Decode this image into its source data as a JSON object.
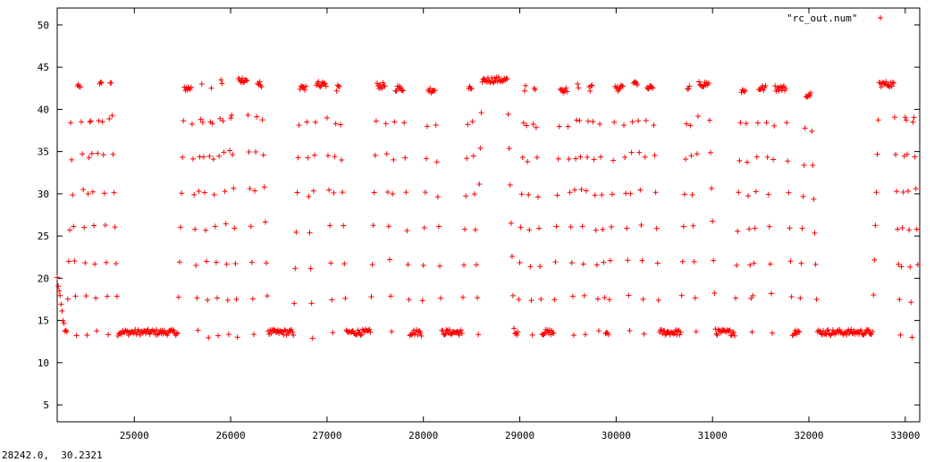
{
  "chart_data": {
    "type": "scatter",
    "title": "",
    "xlabel": "",
    "ylabel": "",
    "xlim": [
      24200,
      33150
    ],
    "ylim": [
      3,
      52
    ],
    "xticks": [
      25000,
      26000,
      27000,
      28000,
      29000,
      30000,
      31000,
      32000,
      33000
    ],
    "yticks": [
      5,
      10,
      15,
      20,
      25,
      30,
      35,
      40,
      45,
      50
    ],
    "grid": false,
    "legend_position": "top-right",
    "marker": "+",
    "series": [
      {
        "name": "\"rc_out.num\"",
        "color": "#ff0000",
        "sample_spacing": 10,
        "pulses": [
          {
            "start": 24200,
            "rise": 24300,
            "fall": 24330,
            "high": 42.5,
            "low": 13.5,
            "x0": 24200,
            "y0": 20.0
          },
          {
            "rise": 24320,
            "fall": 24440,
            "high": 42.8,
            "low": 13.5
          },
          {
            "rise": 24480,
            "fall": 24540,
            "high": 42.8,
            "low": 13.5
          },
          {
            "rise": 24570,
            "fall": 24660,
            "high": 43.0,
            "low": 13.5
          },
          {
            "rise": 24680,
            "fall": 24760,
            "high": 43.2,
            "low": 13.5
          },
          {
            "rise": 25450,
            "fall": 25590,
            "high": 42.5,
            "low": 13.5
          },
          {
            "rise": 25630,
            "fall": 25700,
            "high": 42.8,
            "low": 13.3
          },
          {
            "rise": 25730,
            "fall": 25800,
            "high": 42.8,
            "low": 13.3
          },
          {
            "rise": 25830,
            "fall": 25910,
            "high": 43.2,
            "low": 13.3
          },
          {
            "rise": 25940,
            "fall": 26000,
            "high": 43.5,
            "low": 13.0
          },
          {
            "rise": 26010,
            "fall": 26170,
            "high": 43.5,
            "low": 13.3
          },
          {
            "rise": 26210,
            "fall": 26320,
            "high": 43.0,
            "low": 13.8
          },
          {
            "rise": 26650,
            "fall": 26780,
            "high": 42.5,
            "low": 13.0
          },
          {
            "rise": 26820,
            "fall": 26990,
            "high": 43.0,
            "low": 13.5
          },
          {
            "rise": 27030,
            "fall": 27130,
            "high": 42.5,
            "low": 13.5
          },
          {
            "rise": 27450,
            "fall": 27600,
            "high": 42.8,
            "low": 13.5
          },
          {
            "rise": 27640,
            "fall": 27790,
            "high": 42.5,
            "low": 13.5
          },
          {
            "rise": 27980,
            "fall": 28120,
            "high": 42.3,
            "low": 13.5
          },
          {
            "rise": 28400,
            "fall": 28500,
            "high": 42.5,
            "low": 13.3
          },
          {
            "rise": 28540,
            "fall": 28870,
            "high": 43.5,
            "low": 14.0
          },
          {
            "rise": 28980,
            "fall": 29060,
            "high": 42.5,
            "low": 13.3
          },
          {
            "rise": 29080,
            "fall": 29160,
            "high": 42.3,
            "low": 13.5
          },
          {
            "rise": 29350,
            "fall": 29490,
            "high": 42.3,
            "low": 13.5
          },
          {
            "rise": 29530,
            "fall": 29610,
            "high": 42.8,
            "low": 13.5
          },
          {
            "rise": 29650,
            "fall": 29750,
            "high": 42.5,
            "low": 13.5
          },
          {
            "rise": 29780,
            "fall": 29820,
            "high": 42.5,
            "low": 13.5
          },
          {
            "rise": 29920,
            "fall": 30070,
            "high": 42.5,
            "low": 13.5
          },
          {
            "rise": 30110,
            "fall": 30220,
            "high": 43.0,
            "low": 13.5
          },
          {
            "rise": 30250,
            "fall": 30380,
            "high": 42.5,
            "low": 13.5
          },
          {
            "rise": 30670,
            "fall": 30760,
            "high": 42.5,
            "low": 13.5
          },
          {
            "rise": 30790,
            "fall": 30960,
            "high": 43.0,
            "low": 14.0
          },
          {
            "rise": 31230,
            "fall": 31340,
            "high": 42.3,
            "low": 13.5
          },
          {
            "rise": 31410,
            "fall": 31550,
            "high": 42.5,
            "low": 13.8
          },
          {
            "rise": 31580,
            "fall": 31760,
            "high": 42.5,
            "low": 13.5
          },
          {
            "rise": 31900,
            "fall": 32020,
            "high": 41.8,
            "low": 13.5
          },
          {
            "rise": 32660,
            "fall": 32880,
            "high": 43.0,
            "low": 13.5
          },
          {
            "rise": 32940,
            "fall": 33000,
            "high": 43.2,
            "low": 13.0
          },
          {
            "rise": 33020,
            "fall": 33080,
            "high": 43.0,
            "low": 13.5
          }
        ]
      }
    ]
  },
  "status_text": "28242.0,  30.2321"
}
